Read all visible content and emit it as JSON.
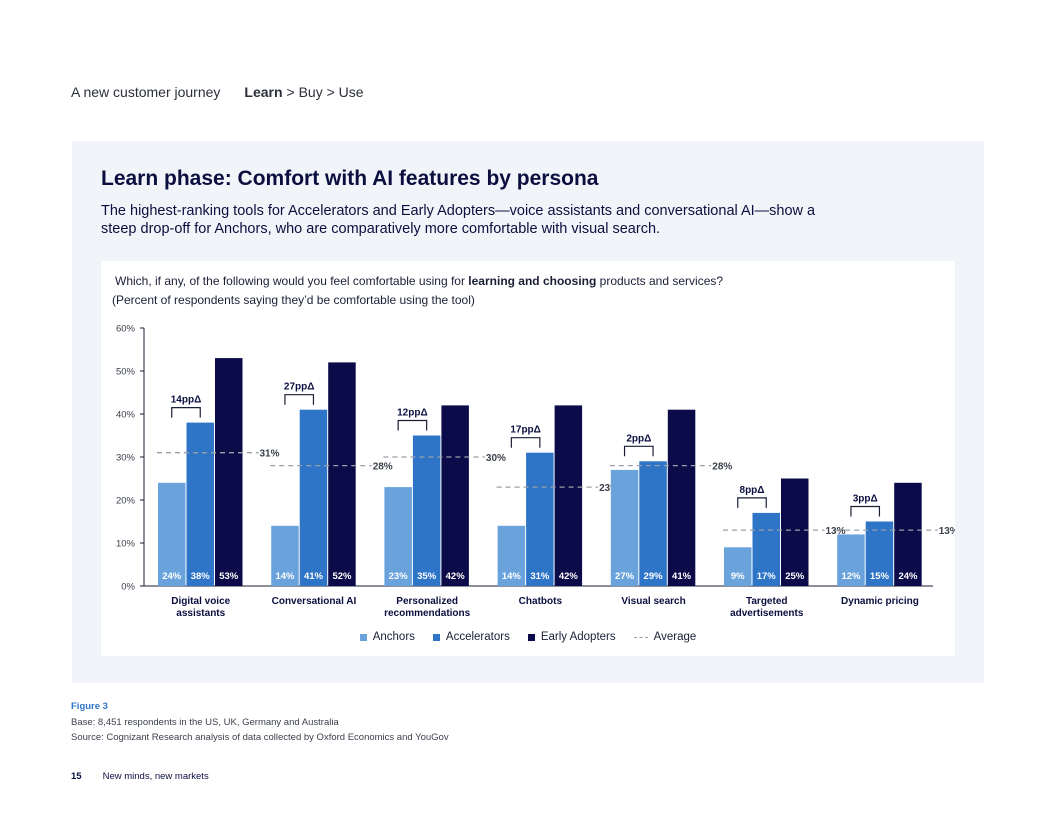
{
  "breadcrumb": {
    "section": "A new customer journey",
    "current": "Learn",
    "rest": "> Buy > Use"
  },
  "panel": {
    "title": "Learn phase: Comfort with AI features by persona",
    "subtitle": "The highest-ranking tools for Accelerators and Early Adopters—voice assistants and conversational AI—show a steep drop-off for Anchors, who are comparatively more comfortable with visual search."
  },
  "question": {
    "prefix": "Which, if any, of the following would you feel comfortable using for ",
    "emphasis": "learning and choosing",
    "suffix": " products and services?",
    "note": "(Percent of respondents saying they’d be comfortable using the tool)"
  },
  "chart_data": {
    "type": "bar",
    "title": "",
    "xlabel": "",
    "ylabel": "",
    "ylim": [
      0,
      60
    ],
    "yticks": [
      "0%",
      "10%",
      "20%",
      "30%",
      "40%",
      "50%",
      "60%"
    ],
    "grid": false,
    "legend_position": "bottom",
    "categories": [
      [
        "Digital voice",
        "assistants"
      ],
      [
        "Conversational AI"
      ],
      [
        "Personalized",
        "recommendations"
      ],
      [
        "Chatbots"
      ],
      [
        "Visual search"
      ],
      [
        "Targeted",
        "advertisements"
      ],
      [
        "Dynamic pricing"
      ]
    ],
    "series": [
      {
        "name": "Anchors",
        "color": "#6aa3dc",
        "values": [
          24,
          14,
          23,
          14,
          27,
          9,
          12
        ]
      },
      {
        "name": "Accelerators",
        "color": "#2e75c8",
        "values": [
          38,
          41,
          35,
          31,
          29,
          17,
          15
        ]
      },
      {
        "name": "Early Adopters",
        "color": "#0b0b4a",
        "values": [
          53,
          52,
          42,
          42,
          41,
          25,
          24
        ]
      }
    ],
    "bar_labels": [
      [
        "24%",
        "38%",
        "53%"
      ],
      [
        "14%",
        "41%",
        "52%"
      ],
      [
        "23%",
        "35%",
        "42%"
      ],
      [
        "14%",
        "31%",
        "42%"
      ],
      [
        "27%",
        "29%",
        "41%"
      ],
      [
        "9%",
        "17%",
        "25%"
      ],
      [
        "12%",
        "15%",
        "24%"
      ]
    ],
    "average": {
      "name": "Average",
      "color": "#9aa0a8",
      "values": [
        31,
        28,
        30,
        23,
        28,
        13,
        13
      ],
      "labels": [
        "31%",
        "28%",
        "30%",
        "23%",
        "28%",
        "13%",
        "13%"
      ]
    },
    "gaps": {
      "labels": [
        "14ppΔ",
        "27ppΔ",
        "12ppΔ",
        "17ppΔ",
        "2ppΔ",
        "8ppΔ",
        "3ppΔ"
      ],
      "values": [
        14,
        27,
        12,
        17,
        2,
        8,
        3
      ]
    }
  },
  "figure": {
    "label": "Figure 3",
    "base": "Base: 8,451 respondents in the US, UK, Germany and Australia",
    "source": "Source: Cognizant Research analysis of data collected by Oxford Economics and YouGov"
  },
  "footer": {
    "page": "15",
    "title": "New minds, new markets"
  }
}
